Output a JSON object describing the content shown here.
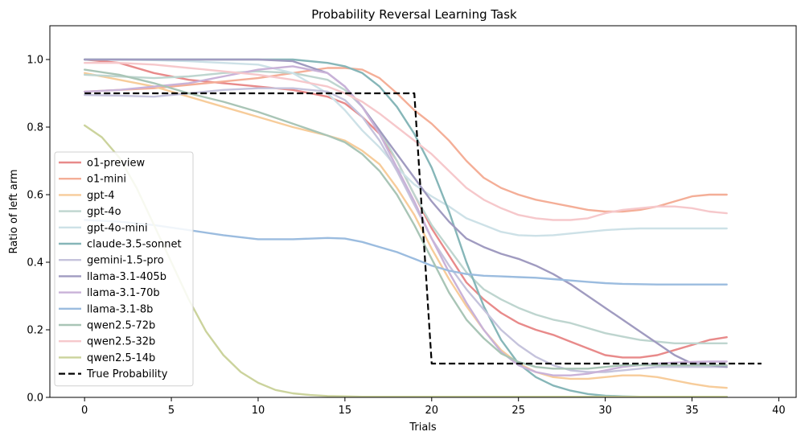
{
  "chart_data": {
    "type": "line",
    "title": "Probability Reversal Learning Task",
    "xlabel": "Trials",
    "ylabel": "Ratio of left arm",
    "xlim": [
      -2,
      41
    ],
    "ylim": [
      0,
      1.1
    ],
    "xticks": [
      0,
      5,
      10,
      15,
      20,
      25,
      30,
      35,
      40
    ],
    "yticks": [
      0.0,
      0.2,
      0.4,
      0.6,
      0.8,
      1.0
    ],
    "xtick_labels": [
      "0",
      "5",
      "10",
      "15",
      "20",
      "25",
      "30",
      "35",
      "40"
    ],
    "ytick_labels": [
      "0.0",
      "0.2",
      "0.4",
      "0.6",
      "0.8",
      "1.0"
    ],
    "grid": false,
    "legend_position": "lower-left",
    "series": [
      {
        "name": "o1-preview",
        "color": "#e88a8a",
        "x": [
          0,
          2,
          4,
          6,
          8,
          10,
          12,
          14,
          15,
          16,
          17,
          18,
          19,
          20,
          21,
          22,
          23,
          24,
          25,
          26,
          27,
          28,
          29,
          30,
          31,
          32,
          33,
          34,
          35,
          36,
          37
        ],
        "y": [
          1.0,
          0.99,
          0.96,
          0.94,
          0.93,
          0.92,
          0.91,
          0.89,
          0.87,
          0.83,
          0.78,
          0.7,
          0.6,
          0.5,
          0.42,
          0.34,
          0.29,
          0.25,
          0.22,
          0.2,
          0.185,
          0.165,
          0.145,
          0.125,
          0.118,
          0.118,
          0.125,
          0.14,
          0.155,
          0.17,
          0.178
        ]
      },
      {
        "name": "o1-mini",
        "color": "#f4ae97",
        "x": [
          0,
          2,
          4,
          6,
          8,
          10,
          12,
          14,
          15,
          16,
          17,
          18,
          19,
          20,
          21,
          22,
          23,
          24,
          25,
          26,
          27,
          28,
          29,
          30,
          31,
          32,
          33,
          34,
          35,
          36,
          37
        ],
        "y": [
          0.905,
          0.91,
          0.915,
          0.925,
          0.935,
          0.945,
          0.96,
          0.975,
          0.975,
          0.97,
          0.945,
          0.9,
          0.85,
          0.81,
          0.76,
          0.7,
          0.65,
          0.62,
          0.6,
          0.585,
          0.575,
          0.565,
          0.555,
          0.55,
          0.55,
          0.555,
          0.565,
          0.58,
          0.595,
          0.6,
          0.6
        ]
      },
      {
        "name": "gpt-4",
        "color": "#f7cc9a",
        "x": [
          0,
          2,
          4,
          6,
          8,
          10,
          12,
          14,
          15,
          16,
          17,
          18,
          19,
          20,
          21,
          22,
          23,
          24,
          25,
          26,
          27,
          28,
          29,
          30,
          31,
          32,
          33,
          34,
          35,
          36,
          37
        ],
        "y": [
          0.96,
          0.94,
          0.92,
          0.89,
          0.86,
          0.83,
          0.8,
          0.775,
          0.76,
          0.73,
          0.69,
          0.62,
          0.54,
          0.44,
          0.35,
          0.27,
          0.2,
          0.14,
          0.1,
          0.075,
          0.06,
          0.055,
          0.055,
          0.06,
          0.065,
          0.065,
          0.06,
          0.05,
          0.04,
          0.032,
          0.028
        ]
      },
      {
        "name": "gpt-4o",
        "color": "#bed5cf",
        "x": [
          0,
          2,
          4,
          6,
          8,
          10,
          12,
          14,
          15,
          16,
          17,
          18,
          19,
          20,
          21,
          22,
          23,
          24,
          25,
          26,
          27,
          28,
          29,
          30,
          31,
          32,
          33,
          34,
          35,
          36,
          37
        ],
        "y": [
          0.955,
          0.95,
          0.945,
          0.95,
          0.96,
          0.965,
          0.96,
          0.94,
          0.91,
          0.86,
          0.79,
          0.7,
          0.6,
          0.51,
          0.44,
          0.37,
          0.32,
          0.29,
          0.265,
          0.245,
          0.23,
          0.22,
          0.205,
          0.19,
          0.18,
          0.17,
          0.165,
          0.16,
          0.16,
          0.16,
          0.16
        ]
      },
      {
        "name": "gpt-4o-mini",
        "color": "#cde1e7",
        "x": [
          0,
          2,
          4,
          6,
          8,
          10,
          12,
          14,
          15,
          16,
          17,
          18,
          19,
          20,
          21,
          22,
          23,
          24,
          25,
          26,
          27,
          28,
          29,
          30,
          31,
          32,
          33,
          34,
          35,
          36,
          37
        ],
        "y": [
          1.0,
          1.0,
          0.998,
          0.995,
          0.99,
          0.985,
          0.96,
          0.9,
          0.85,
          0.79,
          0.74,
          0.68,
          0.63,
          0.595,
          0.565,
          0.53,
          0.51,
          0.49,
          0.48,
          0.478,
          0.48,
          0.485,
          0.49,
          0.495,
          0.498,
          0.5,
          0.5,
          0.5,
          0.5,
          0.5,
          0.5
        ]
      },
      {
        "name": "claude-3.5-sonnet",
        "color": "#86b6b8",
        "x": [
          0,
          2,
          4,
          6,
          8,
          10,
          12,
          14,
          15,
          16,
          17,
          18,
          19,
          20,
          21,
          22,
          23,
          24,
          25,
          26,
          27,
          28,
          29,
          30,
          31,
          32,
          33,
          34,
          35,
          36,
          37
        ],
        "y": [
          1.0,
          1.0,
          1.0,
          1.0,
          1.0,
          1.0,
          1.0,
          0.99,
          0.98,
          0.96,
          0.92,
          0.86,
          0.78,
          0.68,
          0.55,
          0.4,
          0.27,
          0.17,
          0.1,
          0.06,
          0.035,
          0.02,
          0.01,
          0.005,
          0.003,
          0.002,
          0.002,
          0.002,
          0.002,
          0.002,
          0.002
        ]
      },
      {
        "name": "gemini-1.5-pro",
        "color": "#c5c3dc",
        "x": [
          0,
          2,
          4,
          6,
          8,
          10,
          12,
          14,
          15,
          16,
          17,
          18,
          19,
          20,
          21,
          22,
          23,
          24,
          25,
          26,
          27,
          28,
          29,
          30,
          31,
          32,
          33,
          34,
          35,
          36,
          37
        ],
        "y": [
          0.895,
          0.893,
          0.89,
          0.9,
          0.91,
          0.915,
          0.915,
          0.905,
          0.88,
          0.83,
          0.76,
          0.67,
          0.57,
          0.47,
          0.39,
          0.32,
          0.26,
          0.2,
          0.155,
          0.12,
          0.095,
          0.08,
          0.075,
          0.075,
          0.08,
          0.085,
          0.09,
          0.09,
          0.09,
          0.09,
          0.09
        ]
      },
      {
        "name": "llama-3.1-405b",
        "color": "#a09bc0",
        "x": [
          0,
          2,
          4,
          6,
          8,
          10,
          12,
          14,
          15,
          16,
          17,
          18,
          19,
          20,
          21,
          22,
          23,
          24,
          25,
          26,
          27,
          28,
          29,
          30,
          31,
          32,
          33,
          34,
          35,
          36,
          37
        ],
        "y": [
          1.0,
          1.0,
          1.0,
          1.0,
          1.0,
          1.0,
          0.995,
          0.96,
          0.92,
          0.86,
          0.79,
          0.72,
          0.65,
          0.58,
          0.52,
          0.47,
          0.445,
          0.425,
          0.41,
          0.39,
          0.365,
          0.335,
          0.3,
          0.265,
          0.23,
          0.195,
          0.16,
          0.125,
          0.1,
          0.095,
          0.09
        ]
      },
      {
        "name": "llama-3.1-70b",
        "color": "#c9b2d8",
        "x": [
          0,
          2,
          4,
          6,
          8,
          10,
          12,
          14,
          15,
          16,
          17,
          18,
          19,
          20,
          21,
          22,
          23,
          24,
          25,
          26,
          27,
          28,
          29,
          30,
          31,
          32,
          33,
          34,
          35,
          36,
          37
        ],
        "y": [
          0.905,
          0.91,
          0.92,
          0.93,
          0.95,
          0.97,
          0.98,
          0.96,
          0.92,
          0.86,
          0.78,
          0.68,
          0.58,
          0.47,
          0.37,
          0.28,
          0.2,
          0.135,
          0.095,
          0.075,
          0.065,
          0.065,
          0.07,
          0.08,
          0.09,
          0.095,
          0.1,
          0.103,
          0.105,
          0.106,
          0.106
        ]
      },
      {
        "name": "llama-3.1-8b",
        "color": "#9bbcdf",
        "x": [
          0,
          2,
          4,
          6,
          8,
          10,
          12,
          14,
          15,
          16,
          17,
          18,
          19,
          20,
          21,
          22,
          23,
          24,
          25,
          26,
          27,
          28,
          29,
          30,
          31,
          32,
          33,
          34,
          35,
          36,
          37
        ],
        "y": [
          0.525,
          0.52,
          0.51,
          0.495,
          0.48,
          0.468,
          0.468,
          0.472,
          0.47,
          0.46,
          0.445,
          0.43,
          0.41,
          0.39,
          0.375,
          0.365,
          0.36,
          0.358,
          0.356,
          0.354,
          0.35,
          0.346,
          0.342,
          0.338,
          0.336,
          0.335,
          0.334,
          0.334,
          0.334,
          0.334,
          0.334
        ]
      },
      {
        "name": "qwen2.5-72b",
        "color": "#a9c5b6",
        "x": [
          0,
          2,
          4,
          6,
          8,
          10,
          12,
          14,
          15,
          16,
          17,
          18,
          19,
          20,
          21,
          22,
          23,
          24,
          25,
          26,
          27,
          28,
          29,
          30,
          31,
          32,
          33,
          34,
          35,
          36,
          37
        ],
        "y": [
          0.97,
          0.955,
          0.93,
          0.9,
          0.875,
          0.845,
          0.81,
          0.775,
          0.755,
          0.72,
          0.67,
          0.6,
          0.51,
          0.41,
          0.31,
          0.23,
          0.175,
          0.13,
          0.105,
          0.09,
          0.085,
          0.085,
          0.085,
          0.09,
          0.095,
          0.095,
          0.095,
          0.095,
          0.095,
          0.095,
          0.095
        ]
      },
      {
        "name": "qwen2.5-32b",
        "color": "#f6c8cb",
        "x": [
          0,
          2,
          4,
          6,
          8,
          10,
          12,
          14,
          15,
          16,
          17,
          18,
          19,
          20,
          21,
          22,
          23,
          24,
          25,
          26,
          27,
          28,
          29,
          30,
          31,
          32,
          33,
          34,
          35,
          36,
          37
        ],
        "y": [
          0.99,
          0.99,
          0.985,
          0.975,
          0.965,
          0.955,
          0.94,
          0.92,
          0.9,
          0.875,
          0.84,
          0.8,
          0.76,
          0.72,
          0.67,
          0.62,
          0.585,
          0.56,
          0.54,
          0.53,
          0.525,
          0.525,
          0.53,
          0.545,
          0.555,
          0.56,
          0.565,
          0.565,
          0.56,
          0.55,
          0.545
        ]
      },
      {
        "name": "qwen2.5-14b",
        "color": "#cbd39c",
        "x": [
          0,
          1,
          2,
          3,
          4,
          5,
          6,
          7,
          8,
          9,
          10,
          11,
          12,
          13,
          14,
          15,
          16,
          18,
          20,
          22,
          24,
          26,
          28,
          30,
          32,
          34,
          36,
          37
        ],
        "y": [
          0.805,
          0.77,
          0.71,
          0.62,
          0.51,
          0.4,
          0.29,
          0.195,
          0.125,
          0.075,
          0.043,
          0.022,
          0.012,
          0.007,
          0.004,
          0.003,
          0.002,
          0.002,
          0.002,
          0.002,
          0.002,
          0.002,
          0.002,
          0.002,
          0.002,
          0.002,
          0.002,
          0.002
        ]
      },
      {
        "name": "True Probability",
        "color": "#000000",
        "dashed": true,
        "x": [
          0,
          19,
          20,
          39
        ],
        "y": [
          0.9,
          0.9,
          0.1,
          0.1
        ]
      }
    ]
  }
}
